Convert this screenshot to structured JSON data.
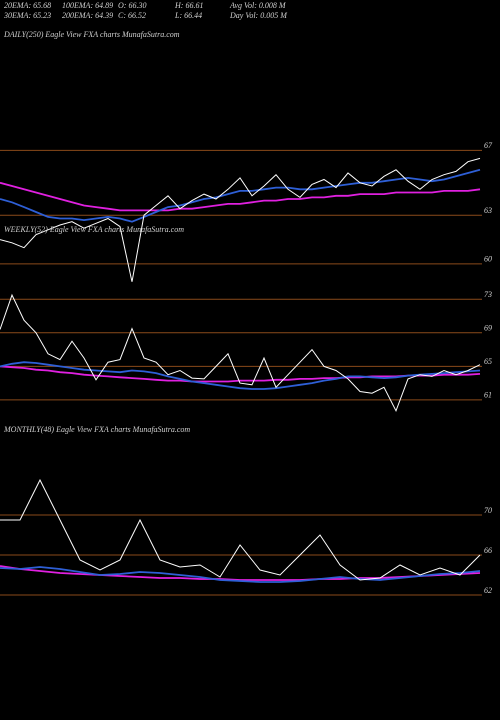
{
  "header": {
    "stats": [
      [
        "20EMA: 65.68",
        "100EMA: 64.89",
        "O: 66.30",
        "H: 66.61",
        "Avg Vol: 0.008 M"
      ],
      [
        "30EMA: 65.23",
        "200EMA: 64.39",
        "C: 66.52",
        "L: 66.44",
        "Day Vol: 0.005 M"
      ]
    ]
  },
  "chart_data": [
    {
      "type": "line",
      "title": "DAILY(250) Eagle View FXA charts MunafaSutra.com",
      "ylim": [
        58.7,
        73.8
      ],
      "yticks": [
        67,
        63,
        60
      ],
      "grid": true,
      "series": [
        {
          "color": "#e020e0",
          "values": [
            65.0,
            64.8,
            64.6,
            64.4,
            64.2,
            64.0,
            63.8,
            63.6,
            63.5,
            63.4,
            63.3,
            63.3,
            63.3,
            63.3,
            63.3,
            63.4,
            63.4,
            63.5,
            63.6,
            63.7,
            63.7,
            63.8,
            63.9,
            63.9,
            64.0,
            64.0,
            64.1,
            64.1,
            64.2,
            64.2,
            64.3,
            64.3,
            64.3,
            64.4,
            64.4,
            64.4,
            64.4,
            64.5,
            64.5,
            64.5,
            64.6
          ]
        },
        {
          "color": "#2e5fd6",
          "values": [
            64.0,
            63.8,
            63.5,
            63.2,
            62.9,
            62.8,
            62.8,
            62.7,
            62.8,
            62.9,
            62.8,
            62.6,
            62.9,
            63.2,
            63.5,
            63.6,
            63.8,
            64.0,
            64.1,
            64.3,
            64.5,
            64.5,
            64.6,
            64.7,
            64.7,
            64.6,
            64.6,
            64.7,
            64.8,
            64.9,
            65.0,
            65.0,
            65.1,
            65.2,
            65.3,
            65.2,
            65.1,
            65.2,
            65.4,
            65.6,
            65.8
          ]
        },
        {
          "color": "#ffffff",
          "values": [
            61.5,
            61.3,
            61.0,
            61.8,
            62.1,
            62.4,
            62.6,
            62.2,
            62.5,
            62.8,
            62.3,
            58.9,
            63.0,
            63.6,
            64.2,
            63.4,
            63.9,
            64.3,
            64.0,
            64.6,
            65.3,
            64.2,
            64.8,
            65.5,
            64.6,
            64.1,
            64.9,
            65.2,
            64.7,
            65.6,
            65.0,
            64.8,
            65.4,
            65.8,
            65.1,
            64.6,
            65.2,
            65.5,
            65.7,
            66.3,
            66.5
          ]
        }
      ]
    },
    {
      "type": "line",
      "title": "WEEKLY(52) Eagle View FXA charts MunafaSutra.com",
      "ylim": [
        59.2,
        74.7
      ],
      "yticks": [
        73,
        69,
        65,
        61
      ],
      "grid": true,
      "series": [
        {
          "color": "#e020e0",
          "values": [
            65.0,
            64.9,
            64.8,
            64.6,
            64.5,
            64.3,
            64.2,
            64.0,
            63.9,
            63.8,
            63.7,
            63.6,
            63.5,
            63.4,
            63.3,
            63.3,
            63.2,
            63.2,
            63.2,
            63.2,
            63.3,
            63.3,
            63.3,
            63.4,
            63.4,
            63.5,
            63.5,
            63.6,
            63.6,
            63.7,
            63.7,
            63.8,
            63.8,
            63.8,
            63.9,
            63.9,
            63.9,
            64.0,
            64.0,
            64.0,
            64.1
          ]
        },
        {
          "color": "#2e5fd6",
          "values": [
            65.0,
            65.3,
            65.5,
            65.4,
            65.2,
            65.0,
            64.8,
            64.6,
            64.5,
            64.4,
            64.3,
            64.5,
            64.4,
            64.2,
            63.8,
            63.5,
            63.2,
            63.0,
            62.8,
            62.6,
            62.4,
            62.3,
            62.3,
            62.4,
            62.6,
            62.8,
            63.0,
            63.3,
            63.5,
            63.8,
            63.8,
            63.7,
            63.6,
            63.7,
            63.9,
            64.0,
            64.1,
            64.2,
            64.3,
            64.4,
            64.5
          ]
        },
        {
          "color": "#ffffff",
          "values": [
            69.4,
            73.5,
            70.5,
            69.0,
            66.5,
            65.8,
            68.0,
            66.0,
            63.4,
            65.5,
            65.8,
            69.5,
            66.0,
            65.5,
            64.0,
            64.5,
            63.6,
            63.5,
            65.0,
            66.5,
            63.0,
            62.8,
            66.0,
            62.5,
            64.0,
            65.5,
            67.0,
            65.0,
            64.5,
            63.5,
            62.0,
            61.8,
            62.5,
            59.7,
            63.5,
            64.0,
            63.8,
            64.5,
            64.0,
            64.5,
            65.2
          ]
        }
      ]
    },
    {
      "type": "line",
      "title": "MONTHLY(48) Eagle View FXA charts MunafaSutra.com",
      "ylim": [
        49.5,
        80
      ],
      "yticks": [
        70,
        66,
        62
      ],
      "grid": true,
      "series": [
        {
          "color": "#e020e0",
          "values": [
            64.9,
            64.6,
            64.4,
            64.2,
            64.1,
            64.0,
            63.9,
            63.8,
            63.7,
            63.7,
            63.6,
            63.6,
            63.5,
            63.5,
            63.5,
            63.5,
            63.6,
            63.6,
            63.7,
            63.7,
            63.8,
            63.9,
            64.0,
            64.1,
            64.2
          ]
        },
        {
          "color": "#2e5fd6",
          "values": [
            64.7,
            64.6,
            64.8,
            64.6,
            64.3,
            64.0,
            64.1,
            64.3,
            64.2,
            64.0,
            63.8,
            63.5,
            63.4,
            63.3,
            63.3,
            63.4,
            63.6,
            63.8,
            63.6,
            63.5,
            63.7,
            63.9,
            64.1,
            64.2,
            64.4
          ]
        },
        {
          "color": "#ffffff",
          "values": [
            69.5,
            69.5,
            73.5,
            69.5,
            65.5,
            64.5,
            65.5,
            69.5,
            65.5,
            64.8,
            65.0,
            63.8,
            67.0,
            64.5,
            64.0,
            66.0,
            68.0,
            65.0,
            63.5,
            63.7,
            65.0,
            64.0,
            64.7,
            64.0,
            66.0
          ]
        }
      ]
    }
  ]
}
